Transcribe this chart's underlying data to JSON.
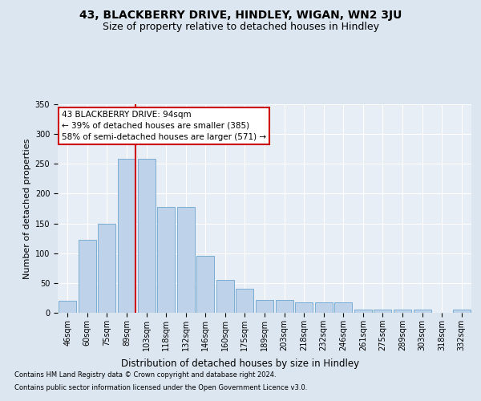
{
  "title1": "43, BLACKBERRY DRIVE, HINDLEY, WIGAN, WN2 3JU",
  "title2": "Size of property relative to detached houses in Hindley",
  "xlabel": "Distribution of detached houses by size in Hindley",
  "ylabel": "Number of detached properties",
  "categories": [
    "46sqm",
    "60sqm",
    "75sqm",
    "89sqm",
    "103sqm",
    "118sqm",
    "132sqm",
    "146sqm",
    "160sqm",
    "175sqm",
    "189sqm",
    "203sqm",
    "218sqm",
    "232sqm",
    "246sqm",
    "261sqm",
    "275sqm",
    "289sqm",
    "303sqm",
    "318sqm",
    "332sqm"
  ],
  "values": [
    20,
    122,
    150,
    258,
    258,
    178,
    178,
    95,
    55,
    40,
    22,
    22,
    17,
    17,
    17,
    5,
    5,
    5,
    5,
    0,
    5
  ],
  "bar_color": "#bed3e9",
  "bar_edge_color": "#7aadd4",
  "vline_color": "#cc0000",
  "vline_x_index": 3,
  "annotation_text": "43 BLACKBERRY DRIVE: 94sqm\n← 39% of detached houses are smaller (385)\n58% of semi-detached houses are larger (571) →",
  "annotation_box_facecolor": "#ffffff",
  "annotation_box_edgecolor": "#cc0000",
  "ylim": [
    0,
    350
  ],
  "yticks": [
    0,
    50,
    100,
    150,
    200,
    250,
    300,
    350
  ],
  "footnote1": "Contains HM Land Registry data © Crown copyright and database right 2024.",
  "footnote2": "Contains public sector information licensed under the Open Government Licence v3.0.",
  "bg_color": "#dce6f0",
  "plot_bg_color": "#e8eef5",
  "grid_color": "#ffffff",
  "title1_fontsize": 10,
  "title2_fontsize": 9,
  "tick_fontsize": 7,
  "ylabel_fontsize": 8,
  "xlabel_fontsize": 8.5,
  "annotation_fontsize": 7.5,
  "footnote_fontsize": 6
}
